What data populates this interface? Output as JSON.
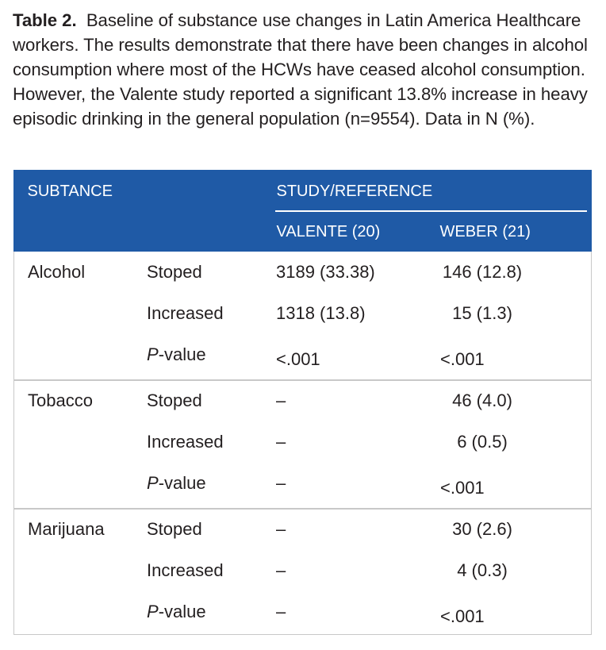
{
  "caption": {
    "label": "Table 2.",
    "text": "Baseline of substance use changes in Latin America Healthcare workers. The results demonstrate that there have been changes in alcohol consumption where most of the HCWs have ceased alcohol consumption. However, the Valente study reported a significant 13.8% increase in heavy episodic drinking in the general population (n=9554). Data in N (%)."
  },
  "table": {
    "header": {
      "substance": "SUBTANCE",
      "study": "STUDY/REFERENCE",
      "valente": "VALENTE (20)",
      "weber": "WEBER (21)"
    },
    "groups": [
      {
        "substance": "Alcohol",
        "rows": [
          {
            "p": "",
            "variable": "Stoped",
            "valente": "3189 (33.38)",
            "weber": "146 (12.8)"
          },
          {
            "p": "",
            "variable": "Increased",
            "valente": "1318 (13.8)",
            "weber": "15 (1.3)"
          },
          {
            "p": "P",
            "variable": "-value",
            "valente": "<.001",
            "weber": "<.001"
          }
        ]
      },
      {
        "substance": "Tobacco",
        "rows": [
          {
            "p": "",
            "variable": "Stoped",
            "valente": "–",
            "weber": "46 (4.0)"
          },
          {
            "p": "",
            "variable": "Increased",
            "valente": "–",
            "weber": "6 (0.5)"
          },
          {
            "p": "P",
            "variable": "-value",
            "valente": "–",
            "weber": "<.001"
          }
        ]
      },
      {
        "substance": "Marijuana",
        "rows": [
          {
            "p": "",
            "variable": "Stoped",
            "valente": "–",
            "weber": "30 (2.6)"
          },
          {
            "p": "",
            "variable": "Increased",
            "valente": "–",
            "weber": "4 (0.3)"
          },
          {
            "p": "P",
            "variable": "-value",
            "valente": "–",
            "weber": "<.001"
          }
        ]
      }
    ]
  },
  "colors": {
    "header_bg": "#1f5aa6",
    "header_text": "#ffffff",
    "body_text": "#231f20",
    "rule": "#c8c8c8"
  }
}
